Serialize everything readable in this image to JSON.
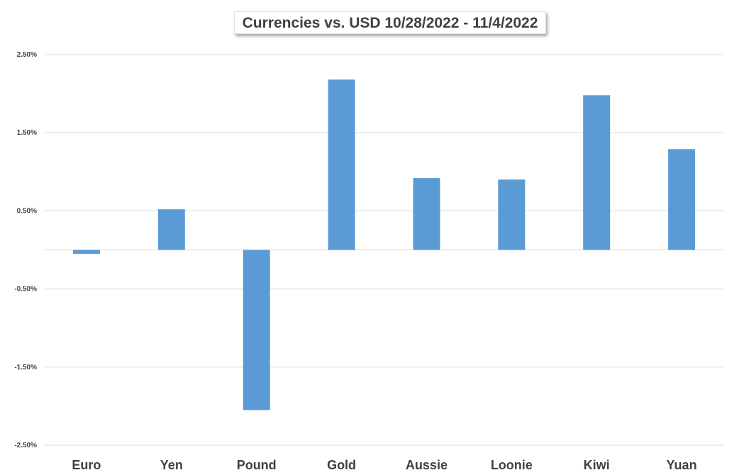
{
  "chart_data": {
    "type": "bar",
    "title": "Currencies vs. USD 10/28/2022 - 11/4/2022",
    "xlabel": "",
    "ylabel": "",
    "categories": [
      "Euro",
      "Yen",
      "Pound",
      "Gold",
      "Aussie",
      "Loonie",
      "Kiwi",
      "Yuan"
    ],
    "values": [
      -0.05,
      0.52,
      -2.05,
      2.18,
      0.92,
      0.9,
      1.98,
      1.29
    ],
    "value_unit": "%",
    "ylim": [
      -2.5,
      2.5
    ],
    "yticks": [
      2.5,
      1.5,
      0.5,
      -0.5,
      -1.5,
      -2.5
    ],
    "ytick_labels": [
      "2.50%",
      "1.50%",
      "0.50%",
      "-0.50%",
      "-1.50%",
      "-2.50%"
    ],
    "bar_color": "#5B9BD5",
    "grid": true,
    "legend": "none"
  }
}
